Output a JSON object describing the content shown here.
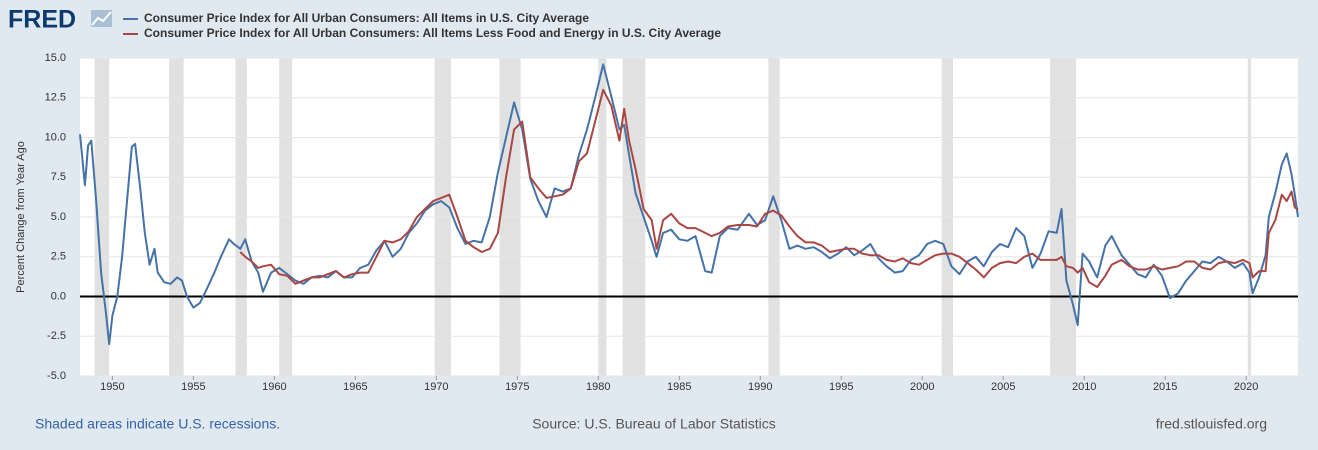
{
  "logo": "FRED",
  "site": "fred.stlouisfed.org",
  "chart_data": {
    "type": "line",
    "ylabel": "Percent Change from Year Ago",
    "note": "Shaded areas indicate U.S. recessions.",
    "source": "Source: U.S. Bureau of Labor Statistics",
    "xlim": [
      1948,
      2023.2
    ],
    "ylim": [
      -5,
      15
    ],
    "xticks": [
      1950,
      1955,
      1960,
      1965,
      1970,
      1975,
      1980,
      1985,
      1990,
      1995,
      2000,
      2005,
      2010,
      2015,
      2020
    ],
    "yticks": [
      {
        "value": 15,
        "label": "15.0"
      },
      {
        "value": 12.5,
        "label": "12.5"
      },
      {
        "value": 10,
        "label": "10.0"
      },
      {
        "value": 7.5,
        "label": "7.5"
      },
      {
        "value": 5,
        "label": "5.0"
      },
      {
        "value": 2.5,
        "label": "2.5"
      },
      {
        "value": 0,
        "label": "0.0"
      },
      {
        "value": -2.5,
        "label": "-2.5"
      },
      {
        "value": -5,
        "label": "-5.0"
      }
    ],
    "grid": true,
    "recession_color": "#e1e1e1",
    "recessions": [
      [
        1948.9,
        1949.8
      ],
      [
        1953.5,
        1954.4
      ],
      [
        1957.6,
        1958.3
      ],
      [
        1960.3,
        1961.1
      ],
      [
        1969.9,
        1970.9
      ],
      [
        1973.9,
        1975.2
      ],
      [
        1980.0,
        1980.5
      ],
      [
        1981.5,
        1982.9
      ],
      [
        1990.5,
        1991.2
      ],
      [
        2001.2,
        2001.9
      ],
      [
        2007.9,
        2009.5
      ],
      [
        2020.1,
        2020.3
      ]
    ],
    "x": [
      1948.0,
      1948.3,
      1948.5,
      1948.7,
      1949.0,
      1949.3,
      1949.6,
      1949.8,
      1950.0,
      1950.3,
      1950.6,
      1950.9,
      1951.2,
      1951.4,
      1951.7,
      1952.0,
      1952.3,
      1952.6,
      1952.8,
      1953.2,
      1953.6,
      1954.0,
      1954.3,
      1954.6,
      1955.0,
      1955.4,
      1955.8,
      1956.3,
      1956.7,
      1957.2,
      1957.5,
      1957.9,
      1958.2,
      1958.6,
      1959.0,
      1959.3,
      1959.8,
      1960.3,
      1960.8,
      1961.3,
      1961.8,
      1962.3,
      1962.8,
      1963.3,
      1963.8,
      1964.3,
      1964.8,
      1965.3,
      1965.8,
      1966.3,
      1966.8,
      1967.3,
      1967.8,
      1968.3,
      1968.8,
      1969.3,
      1969.8,
      1970.3,
      1970.8,
      1971.3,
      1971.8,
      1972.3,
      1972.8,
      1973.3,
      1973.8,
      1974.3,
      1974.8,
      1975.3,
      1975.8,
      1976.3,
      1976.8,
      1977.3,
      1977.8,
      1978.3,
      1978.8,
      1979.3,
      1979.8,
      1980.3,
      1980.8,
      1981.3,
      1981.6,
      1981.9,
      1982.3,
      1982.8,
      1983.3,
      1983.6,
      1984.0,
      1984.5,
      1985.0,
      1985.5,
      1986.0,
      1986.6,
      1987.0,
      1987.5,
      1988.0,
      1988.6,
      1989.3,
      1989.8,
      1990.3,
      1990.8,
      1991.3,
      1991.8,
      1992.3,
      1992.8,
      1993.3,
      1993.8,
      1994.3,
      1994.8,
      1995.3,
      1995.8,
      1996.3,
      1996.8,
      1997.3,
      1997.8,
      1998.3,
      1998.8,
      1999.3,
      1999.8,
      2000.3,
      2000.8,
      2001.3,
      2001.8,
      2002.3,
      2002.8,
      2003.3,
      2003.8,
      2004.3,
      2004.8,
      2005.3,
      2005.8,
      2006.3,
      2006.8,
      2007.3,
      2007.8,
      2008.3,
      2008.6,
      2008.9,
      2009.3,
      2009.6,
      2009.9,
      2010.3,
      2010.8,
      2011.3,
      2011.7,
      2012.3,
      2012.8,
      2013.3,
      2013.8,
      2014.3,
      2014.8,
      2015.3,
      2015.8,
      2016.3,
      2016.8,
      2017.3,
      2017.8,
      2018.3,
      2018.8,
      2019.3,
      2019.8,
      2020.2,
      2020.4,
      2020.8,
      2021.2,
      2021.4,
      2021.8,
      2022.2,
      2022.5,
      2022.8,
      2023.0,
      2023.2
    ],
    "series": [
      {
        "name": "Consumer Price Index for All Urban Consumers: All Items in U.S. City Average",
        "color": "#4572a7",
        "values": [
          10.2,
          7.0,
          9.5,
          9.8,
          6.0,
          1.5,
          -1.0,
          -3.0,
          -1.2,
          0.0,
          2.5,
          6.0,
          9.4,
          9.6,
          7.0,
          4.0,
          2.0,
          3.0,
          1.5,
          0.9,
          0.8,
          1.2,
          1.0,
          0.0,
          -0.7,
          -0.4,
          0.4,
          1.5,
          2.5,
          3.6,
          3.3,
          3.0,
          3.6,
          2.2,
          1.5,
          0.3,
          1.5,
          1.8,
          1.4,
          1.0,
          0.8,
          1.2,
          1.3,
          1.2,
          1.6,
          1.2,
          1.2,
          1.8,
          2.0,
          2.9,
          3.5,
          2.5,
          3.0,
          4.0,
          4.6,
          5.4,
          5.8,
          6.0,
          5.6,
          4.3,
          3.3,
          3.5,
          3.4,
          5.0,
          7.8,
          10.0,
          12.2,
          10.5,
          7.4,
          6.0,
          5.0,
          6.8,
          6.6,
          6.8,
          8.9,
          10.5,
          12.5,
          14.6,
          12.6,
          10.5,
          10.8,
          8.9,
          6.5,
          5.0,
          3.5,
          2.5,
          4.0,
          4.2,
          3.6,
          3.5,
          3.8,
          1.6,
          1.5,
          3.8,
          4.3,
          4.2,
          5.2,
          4.5,
          4.8,
          6.3,
          4.8,
          3.0,
          3.2,
          3.0,
          3.1,
          2.8,
          2.4,
          2.7,
          3.1,
          2.6,
          2.9,
          3.3,
          2.4,
          1.9,
          1.5,
          1.6,
          2.3,
          2.6,
          3.3,
          3.5,
          3.3,
          1.9,
          1.4,
          2.2,
          2.5,
          1.9,
          2.8,
          3.3,
          3.1,
          4.3,
          3.8,
          1.8,
          2.7,
          4.1,
          4.0,
          5.5,
          1.0,
          -0.5,
          -1.8,
          2.7,
          2.2,
          1.2,
          3.2,
          3.8,
          2.6,
          2.0,
          1.4,
          1.2,
          2.0,
          1.3,
          -0.1,
          0.2,
          1.0,
          1.6,
          2.2,
          2.1,
          2.5,
          2.2,
          1.8,
          2.1,
          1.5,
          0.2,
          1.2,
          2.6,
          5.0,
          6.5,
          8.3,
          9.0,
          7.7,
          6.4,
          5.0
        ]
      },
      {
        "name": "Consumer Price Index for All Urban Consumers: All Items Less Food and Energy in U.S. City Average",
        "color": "#aa4643",
        "values": [
          null,
          null,
          null,
          null,
          null,
          null,
          null,
          null,
          null,
          null,
          null,
          null,
          null,
          null,
          null,
          null,
          null,
          null,
          null,
          null,
          null,
          null,
          null,
          null,
          null,
          null,
          null,
          null,
          null,
          null,
          null,
          2.8,
          2.5,
          2.2,
          1.8,
          1.9,
          2.0,
          1.4,
          1.3,
          0.8,
          1.0,
          1.2,
          1.2,
          1.4,
          1.6,
          1.2,
          1.4,
          1.5,
          1.5,
          2.5,
          3.5,
          3.4,
          3.6,
          4.1,
          5.0,
          5.5,
          6.0,
          6.2,
          6.4,
          5.0,
          3.5,
          3.1,
          2.8,
          3.0,
          4.0,
          7.5,
          10.5,
          11.0,
          7.5,
          6.8,
          6.2,
          6.3,
          6.4,
          6.8,
          8.5,
          9.0,
          11.0,
          13.0,
          12.0,
          9.8,
          11.8,
          9.8,
          8.0,
          5.5,
          4.8,
          3.0,
          4.8,
          5.2,
          4.6,
          4.3,
          4.3,
          4.0,
          3.8,
          4.0,
          4.4,
          4.5,
          4.5,
          4.4,
          5.2,
          5.4,
          5.1,
          4.4,
          3.8,
          3.4,
          3.4,
          3.2,
          2.8,
          2.9,
          3.0,
          3.0,
          2.7,
          2.6,
          2.6,
          2.3,
          2.2,
          2.4,
          2.1,
          2.0,
          2.3,
          2.6,
          2.7,
          2.7,
          2.5,
          2.1,
          1.7,
          1.2,
          1.8,
          2.1,
          2.2,
          2.1,
          2.5,
          2.7,
          2.3,
          2.3,
          2.3,
          2.5,
          1.9,
          1.8,
          1.5,
          1.8,
          0.9,
          0.6,
          1.3,
          2.0,
          2.3,
          1.9,
          1.7,
          1.7,
          1.9,
          1.7,
          1.8,
          1.9,
          2.2,
          2.2,
          1.8,
          1.7,
          2.1,
          2.2,
          2.1,
          2.3,
          2.1,
          1.2,
          1.6,
          1.6,
          4.0,
          4.8,
          6.4,
          6.0,
          6.6,
          5.6,
          5.5
        ]
      }
    ]
  }
}
